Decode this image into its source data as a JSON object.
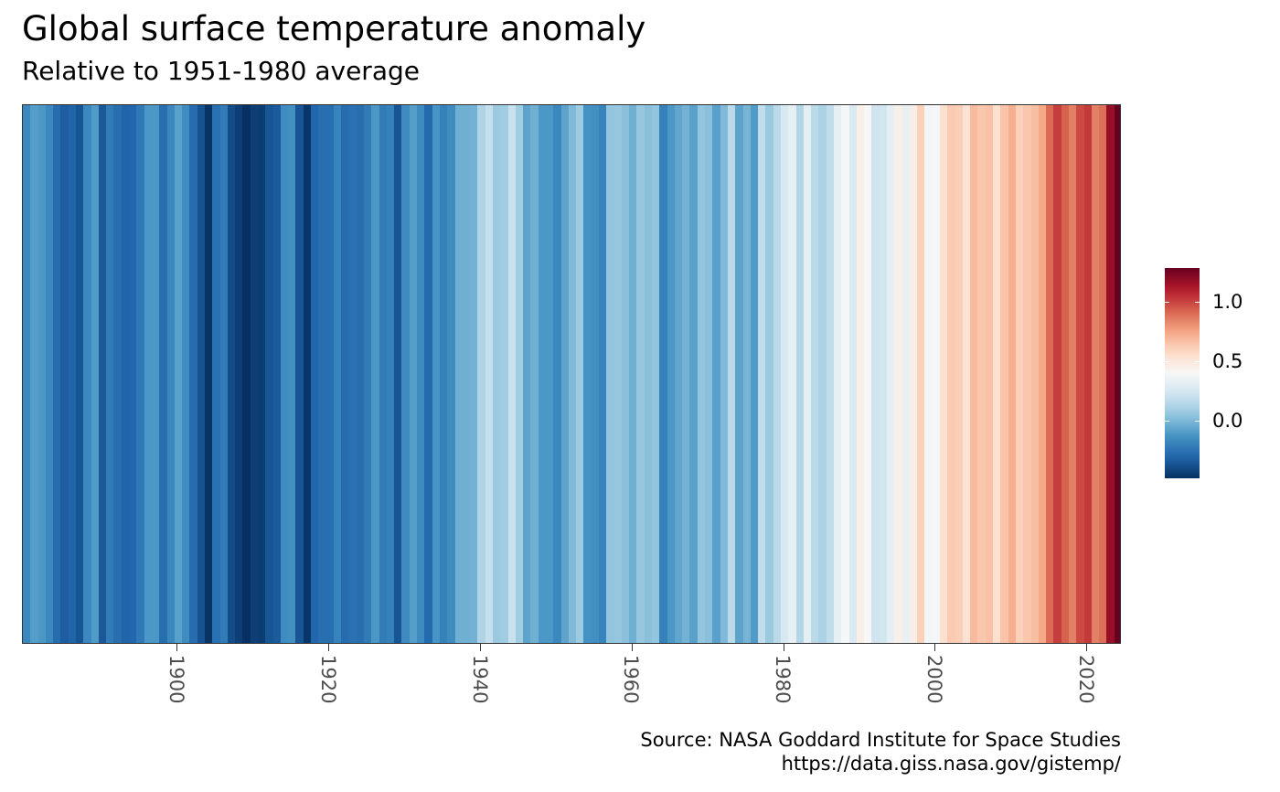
{
  "chart_data": {
    "type": "heatmap",
    "title": "Global surface temperature anomaly",
    "subtitle": "Relative to 1951-1980 average",
    "caption_line1": "Source: NASA Goddard Institute for Space Studies",
    "caption_line2": "https://data.giss.nasa.gov/gistemp/",
    "xlabel": "",
    "ylabel": "",
    "x_range": [
      1880,
      2024
    ],
    "x_ticks": [
      1900,
      1920,
      1940,
      1960,
      1980,
      2000,
      2020
    ],
    "x_tick_labels": [
      "1900",
      "1920",
      "1940",
      "1960",
      "1980",
      "2000",
      "2020"
    ],
    "years": [
      1880,
      1881,
      1882,
      1883,
      1884,
      1885,
      1886,
      1887,
      1888,
      1889,
      1890,
      1891,
      1892,
      1893,
      1894,
      1895,
      1896,
      1897,
      1898,
      1899,
      1900,
      1901,
      1902,
      1903,
      1904,
      1905,
      1906,
      1907,
      1908,
      1909,
      1910,
      1911,
      1912,
      1913,
      1914,
      1915,
      1916,
      1917,
      1918,
      1919,
      1920,
      1921,
      1922,
      1923,
      1924,
      1925,
      1926,
      1927,
      1928,
      1929,
      1930,
      1931,
      1932,
      1933,
      1934,
      1935,
      1936,
      1937,
      1938,
      1939,
      1940,
      1941,
      1942,
      1943,
      1944,
      1945,
      1946,
      1947,
      1948,
      1949,
      1950,
      1951,
      1952,
      1953,
      1954,
      1955,
      1956,
      1957,
      1958,
      1959,
      1960,
      1961,
      1962,
      1963,
      1964,
      1965,
      1966,
      1967,
      1968,
      1969,
      1970,
      1971,
      1972,
      1973,
      1974,
      1975,
      1976,
      1977,
      1978,
      1979,
      1980,
      1981,
      1982,
      1983,
      1984,
      1985,
      1986,
      1987,
      1988,
      1989,
      1990,
      1991,
      1992,
      1993,
      1994,
      1995,
      1996,
      1997,
      1998,
      1999,
      2000,
      2001,
      2002,
      2003,
      2004,
      2005,
      2006,
      2007,
      2008,
      2009,
      2010,
      2011,
      2012,
      2013,
      2014,
      2015,
      2016,
      2017,
      2018,
      2019,
      2020,
      2021,
      2022,
      2023,
      2024
    ],
    "values": [
      -0.17,
      -0.09,
      -0.11,
      -0.17,
      -0.28,
      -0.33,
      -0.31,
      -0.36,
      -0.17,
      -0.1,
      -0.35,
      -0.22,
      -0.27,
      -0.31,
      -0.3,
      -0.23,
      -0.11,
      -0.11,
      -0.27,
      -0.17,
      -0.08,
      -0.15,
      -0.28,
      -0.37,
      -0.47,
      -0.26,
      -0.22,
      -0.39,
      -0.43,
      -0.48,
      -0.43,
      -0.44,
      -0.36,
      -0.34,
      -0.15,
      -0.14,
      -0.36,
      -0.46,
      -0.3,
      -0.27,
      -0.27,
      -0.19,
      -0.28,
      -0.26,
      -0.27,
      -0.22,
      -0.11,
      -0.22,
      -0.2,
      -0.36,
      -0.16,
      -0.09,
      -0.16,
      -0.29,
      -0.12,
      -0.2,
      -0.15,
      -0.03,
      -0.03,
      -0.02,
      0.13,
      0.19,
      0.07,
      0.09,
      0.2,
      0.09,
      -0.07,
      -0.03,
      -0.11,
      -0.11,
      -0.17,
      -0.07,
      0.01,
      0.08,
      -0.13,
      -0.14,
      -0.19,
      0.05,
      0.06,
      0.03,
      -0.03,
      0.06,
      0.03,
      0.05,
      -0.2,
      -0.11,
      -0.06,
      -0.02,
      -0.08,
      0.05,
      0.03,
      -0.08,
      0.01,
      0.16,
      -0.07,
      -0.01,
      -0.1,
      0.18,
      0.07,
      0.16,
      0.26,
      0.32,
      0.14,
      0.31,
      0.16,
      0.12,
      0.18,
      0.32,
      0.39,
      0.27,
      0.45,
      0.4,
      0.22,
      0.23,
      0.31,
      0.45,
      0.33,
      0.46,
      0.61,
      0.38,
      0.39,
      0.54,
      0.63,
      0.62,
      0.53,
      0.68,
      0.64,
      0.66,
      0.54,
      0.65,
      0.72,
      0.61,
      0.64,
      0.67,
      0.74,
      0.9,
      1.01,
      0.92,
      0.85,
      0.98,
      1.02,
      0.85,
      0.89,
      1.17,
      1.28
    ],
    "legend": {
      "type": "colorbar",
      "placement": "right",
      "range": [
        -0.48,
        1.28
      ],
      "ticks": [
        0.0,
        0.5,
        1.0
      ],
      "tick_labels": [
        "0.0",
        "0.5",
        "1.0"
      ]
    },
    "palette": [
      "#053061",
      "#2166ac",
      "#4393c3",
      "#92c5de",
      "#d1e5f0",
      "#f7f7f7",
      "#fddbc7",
      "#f4a582",
      "#d6604d",
      "#b2182b",
      "#67001f"
    ],
    "grid": false
  }
}
